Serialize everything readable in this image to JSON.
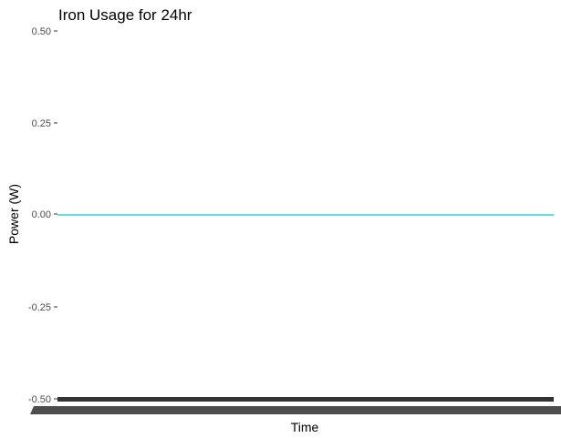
{
  "chart_data": {
    "type": "line",
    "title": "Iron Usage for 24hr",
    "xlabel": "Time",
    "ylabel": "Power (W)",
    "ylim": [
      -0.5,
      0.5
    ],
    "y_ticks": [
      "0.50",
      "0.25",
      "0.00",
      "-0.25",
      "-0.50"
    ],
    "y_tick_values": [
      0.5,
      0.25,
      0.0,
      -0.25,
      -0.5
    ],
    "x_tick_labels": "illegible (overlapping, rendered as dark band)",
    "grid": false,
    "series": [
      {
        "color": "#00CED1",
        "values": [
          0,
          0
        ]
      }
    ],
    "x_axis_color": "#333333",
    "line_color": "#00CED1"
  }
}
